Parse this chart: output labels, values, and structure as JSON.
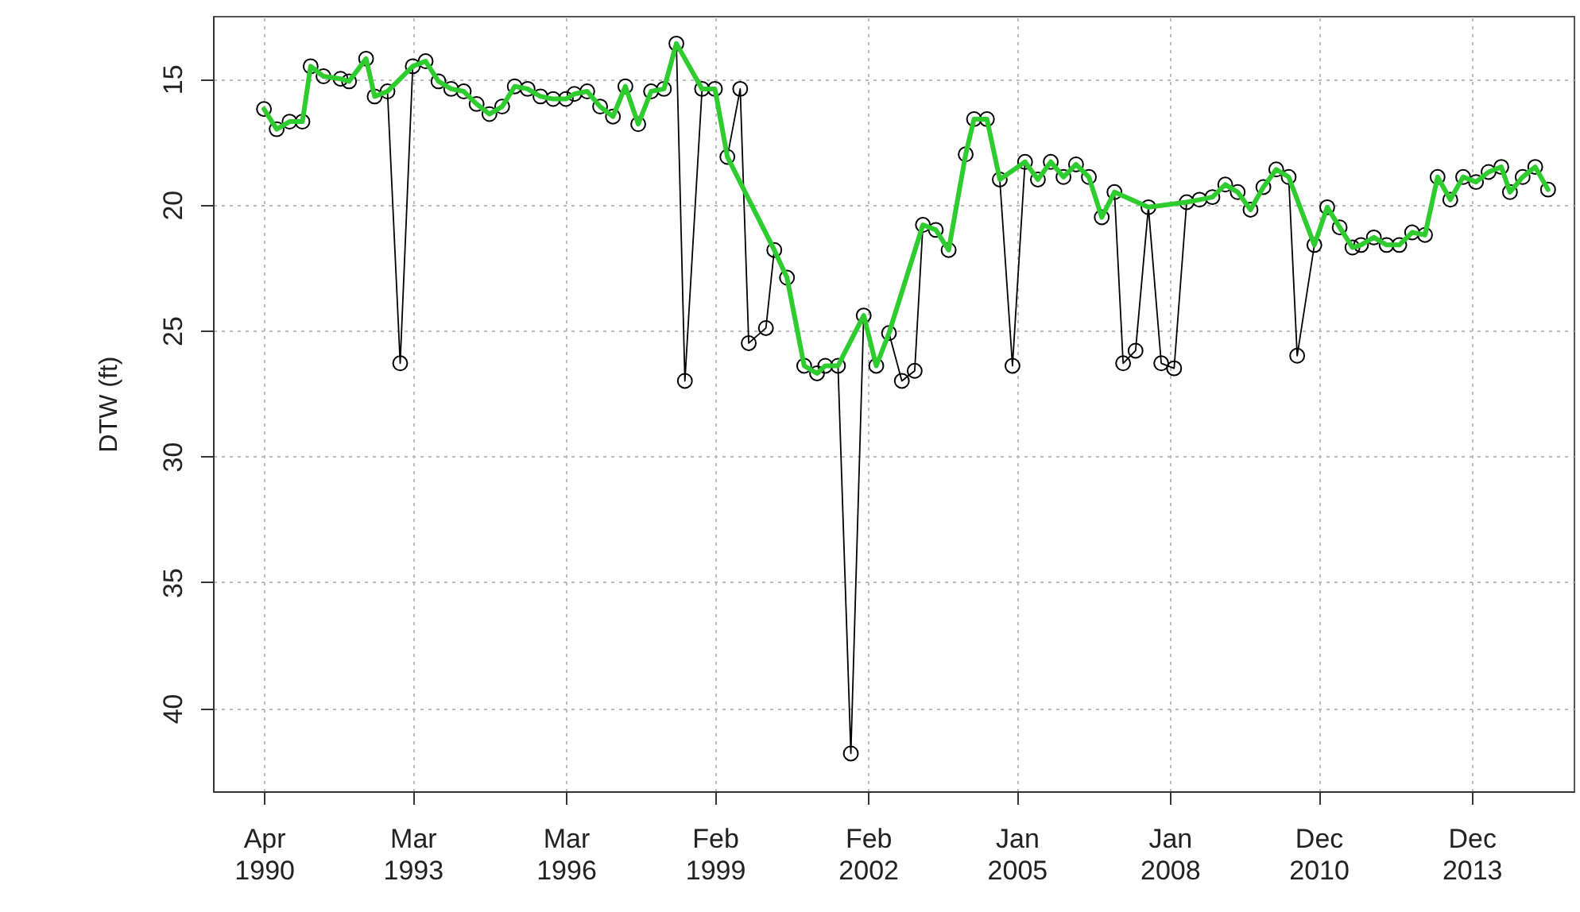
{
  "chart_data": {
    "type": "line",
    "ylabel": "DTW (ft)",
    "xlim": [
      "1989-04",
      "2015-12"
    ],
    "ylim": [
      43.3,
      12.5
    ],
    "yticks": [
      15,
      20,
      25,
      30,
      35,
      40
    ],
    "xticks": [
      {
        "value": "1990-04",
        "label": "Apr 1990"
      },
      {
        "value": "1993-03",
        "label": "Mar 1993"
      },
      {
        "value": "1996-03",
        "label": "Mar 1996"
      },
      {
        "value": "1999-02",
        "label": "Feb 1999"
      },
      {
        "value": "2002-02",
        "label": "Feb 2002"
      },
      {
        "value": "2005-01",
        "label": "Jan 2005"
      },
      {
        "value": "2008-01",
        "label": "Jan 2008"
      },
      {
        "value": "2010-12",
        "label": "Dec 2010"
      },
      {
        "value": "2013-12",
        "label": "Dec 2013"
      }
    ],
    "grid": true,
    "series": [
      {
        "color": "#000000",
        "marker": "circle",
        "x": [
          "1990-04",
          "1990-07",
          "1990-10",
          "1991-01",
          "1991-03",
          "1991-06",
          "1991-10",
          "1991-12",
          "1992-04",
          "1992-06",
          "1992-09",
          "1992-12",
          "1993-03",
          "1993-06",
          "1993-09",
          "1993-12",
          "1994-03",
          "1994-06",
          "1994-09",
          "1994-12",
          "1995-03",
          "1995-06",
          "1995-09",
          "1995-12",
          "1996-03",
          "1996-05",
          "1996-08",
          "1996-11",
          "1997-02",
          "1997-05",
          "1997-08",
          "1997-11",
          "1998-02",
          "1998-05",
          "1998-07",
          "1998-11",
          "1999-02",
          "1999-05",
          "1999-08",
          "1999-10",
          "2000-02",
          "2000-04",
          "2000-07",
          "2000-11",
          "2001-02",
          "2001-04",
          "2001-07",
          "2001-10",
          "2002-01",
          "2002-04",
          "2002-07",
          "2002-10",
          "2003-01",
          "2003-03",
          "2003-06",
          "2003-09",
          "2004-01",
          "2004-03",
          "2004-06",
          "2004-09",
          "2004-12",
          "2005-03",
          "2005-06",
          "2005-09",
          "2005-12",
          "2006-03",
          "2006-06",
          "2006-09",
          "2006-12",
          "2007-02",
          "2007-05",
          "2007-08",
          "2007-11",
          "2008-02",
          "2008-05",
          "2008-08",
          "2008-11",
          "2009-02",
          "2009-05",
          "2009-08",
          "2009-11",
          "2010-02",
          "2010-05",
          "2010-07",
          "2010-11",
          "2011-02",
          "2011-05",
          "2011-08",
          "2011-10",
          "2012-01",
          "2012-04",
          "2012-07",
          "2012-10",
          "2013-01",
          "2013-04",
          "2013-07",
          "2013-10",
          "2014-01",
          "2014-04",
          "2014-07",
          "2014-09",
          "2014-12",
          "2015-03",
          "2015-06"
        ],
        "values": [
          16.2,
          17.0,
          16.7,
          16.7,
          14.5,
          14.9,
          15.0,
          15.1,
          14.2,
          15.7,
          15.5,
          26.3,
          14.5,
          14.3,
          15.1,
          15.4,
          15.5,
          16.0,
          16.4,
          16.1,
          15.3,
          15.4,
          15.7,
          15.8,
          15.8,
          15.6,
          15.5,
          16.1,
          16.5,
          15.3,
          16.8,
          15.5,
          15.4,
          13.6,
          27.0,
          15.4,
          15.4,
          18.1,
          15.4,
          25.5,
          24.9,
          21.8,
          22.9,
          26.4,
          26.7,
          26.4,
          26.4,
          41.8,
          24.4,
          26.4,
          25.1,
          27.0,
          26.6,
          20.8,
          21.0,
          21.8,
          18.0,
          16.6,
          16.6,
          19.0,
          26.4,
          18.3,
          19.0,
          18.3,
          18.9,
          18.4,
          18.9,
          20.5,
          19.5,
          26.3,
          25.8,
          20.1,
          26.3,
          26.5,
          19.9,
          19.8,
          19.7,
          19.2,
          19.5,
          20.2,
          19.3,
          18.6,
          18.9,
          26.0,
          21.6,
          20.1,
          20.9,
          21.7,
          21.6,
          21.3,
          21.6,
          21.6,
          21.1,
          21.2,
          18.9,
          19.8,
          18.9,
          19.1,
          18.7,
          18.5,
          19.5,
          18.9,
          18.5,
          19.4
        ]
      },
      {
        "color": "#2ecc2e",
        "marker": "none",
        "x": [
          "1990-04",
          "1990-07",
          "1990-10",
          "1991-01",
          "1991-03",
          "1991-06",
          "1991-10",
          "1991-12",
          "1992-04",
          "1992-06",
          "1992-09",
          "1993-03",
          "1993-06",
          "1993-09",
          "1993-12",
          "1994-03",
          "1994-06",
          "1994-09",
          "1994-12",
          "1995-03",
          "1995-06",
          "1995-09",
          "1995-12",
          "1996-03",
          "1996-05",
          "1996-08",
          "1996-11",
          "1997-02",
          "1997-05",
          "1997-08",
          "1997-11",
          "1998-02",
          "1998-05",
          "1998-11",
          "1999-02",
          "1999-05",
          "2000-04",
          "2000-07",
          "2000-11",
          "2001-02",
          "2001-04",
          "2001-07",
          "2002-01",
          "2002-04",
          "2002-07",
          "2003-03",
          "2003-06",
          "2003-09",
          "2004-01",
          "2004-03",
          "2004-06",
          "2004-09",
          "2005-03",
          "2005-06",
          "2005-09",
          "2005-12",
          "2006-03",
          "2006-06",
          "2006-09",
          "2006-12",
          "2007-08",
          "2008-05",
          "2008-08",
          "2008-11",
          "2009-02",
          "2009-05",
          "2009-08",
          "2009-11",
          "2010-02",
          "2010-05",
          "2010-11",
          "2011-02",
          "2011-05",
          "2011-08",
          "2011-10",
          "2012-01",
          "2012-04",
          "2012-07",
          "2012-10",
          "2013-01",
          "2013-04",
          "2013-07",
          "2013-10",
          "2014-01",
          "2014-04",
          "2014-07",
          "2014-09",
          "2014-12",
          "2015-03",
          "2015-06"
        ],
        "values": [
          16.2,
          17.0,
          16.7,
          16.7,
          14.5,
          14.9,
          15.0,
          15.1,
          14.2,
          15.7,
          15.5,
          14.5,
          14.3,
          15.1,
          15.4,
          15.5,
          16.0,
          16.4,
          16.1,
          15.3,
          15.4,
          15.7,
          15.8,
          15.8,
          15.6,
          15.5,
          16.1,
          16.5,
          15.3,
          16.8,
          15.5,
          15.4,
          13.6,
          15.4,
          15.4,
          18.1,
          21.8,
          22.9,
          26.4,
          26.7,
          26.4,
          26.4,
          24.4,
          26.4,
          25.1,
          20.8,
          21.0,
          21.8,
          18.0,
          16.6,
          16.6,
          19.0,
          18.3,
          19.0,
          18.3,
          18.9,
          18.4,
          18.9,
          20.5,
          19.5,
          20.1,
          19.9,
          19.8,
          19.7,
          19.2,
          19.5,
          20.2,
          19.3,
          18.6,
          18.9,
          21.6,
          20.1,
          20.9,
          21.7,
          21.6,
          21.3,
          21.6,
          21.6,
          21.1,
          21.2,
          18.9,
          19.8,
          18.9,
          19.1,
          18.7,
          18.5,
          19.5,
          18.9,
          18.5,
          19.4
        ]
      }
    ]
  }
}
